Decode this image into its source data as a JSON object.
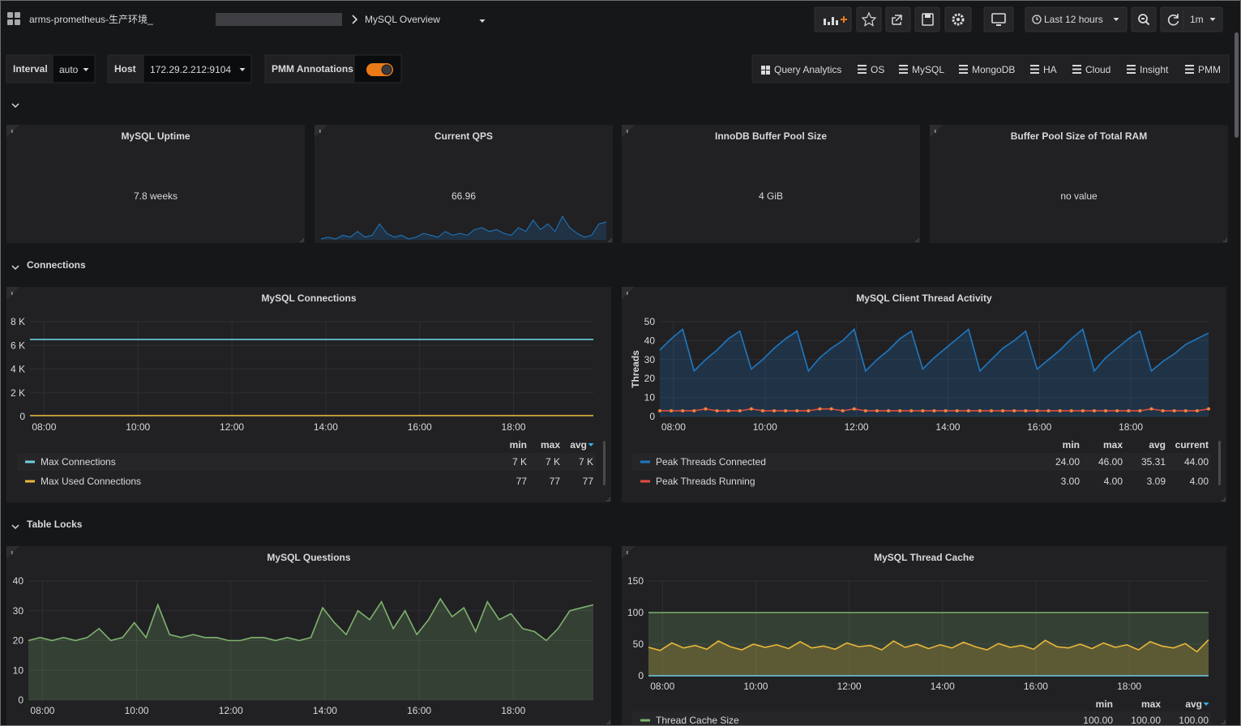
{
  "header": {
    "breadcrumb": "arms-prometheus-生产环境_",
    "title": "MySQL Overview",
    "time_range": "Last 12 hours",
    "refresh": "1m"
  },
  "variables": [
    {
      "label": "Interval",
      "value": "auto"
    },
    {
      "label": "Host",
      "value": "172.29.2.212:9104"
    },
    {
      "label": "PMM Annotations",
      "enabled": true
    }
  ],
  "links": [
    "Query Analytics",
    "OS",
    "MySQL",
    "MongoDB",
    "HA",
    "Cloud",
    "Insight",
    "PMM"
  ],
  "stats": [
    {
      "title": "MySQL Uptime",
      "value": "7.8 weeks",
      "color": "#3cab3c"
    },
    {
      "title": "Current QPS",
      "value": "66.96",
      "sparkline": {
        "color": "#1f78c1",
        "values": [
          62,
          63,
          62,
          64,
          63,
          66,
          63,
          64,
          70,
          65,
          63,
          64,
          62,
          63,
          65,
          64,
          63,
          66,
          64,
          65,
          64,
          67,
          68,
          66,
          67,
          65,
          64,
          68,
          66,
          72,
          67,
          70,
          66,
          74,
          68,
          65,
          63,
          64,
          70,
          71
        ]
      }
    },
    {
      "title": "InnoDB Buffer Pool Size",
      "value": "4 GiB"
    },
    {
      "title": "Buffer Pool Size of Total RAM",
      "value": "no value"
    }
  ],
  "rows": [
    "Connections",
    "Table Locks"
  ],
  "chart_data": [
    {
      "type": "line",
      "title": "MySQL Connections",
      "grid": true,
      "x": [
        7.7,
        8.2,
        8.7,
        9.2,
        9.7,
        10.2,
        10.7,
        11.2,
        11.7,
        12.2,
        12.7,
        13.2,
        13.7,
        14.2,
        14.7,
        15.2,
        15.7,
        16.2,
        16.7,
        17.2,
        17.7,
        18.2,
        18.7,
        19.2,
        19.7
      ],
      "xlim": [
        7.7,
        19.7
      ],
      "xticks": [
        {
          "value": 8,
          "label": "08:00"
        },
        {
          "value": 10,
          "label": "10:00"
        },
        {
          "value": 12,
          "label": "12:00"
        },
        {
          "value": 14,
          "label": "14:00"
        },
        {
          "value": 16,
          "label": "16:00"
        },
        {
          "value": 18,
          "label": "18:00"
        }
      ],
      "ylim": [
        0,
        8000
      ],
      "yticks": [
        0,
        {
          "value": 2000,
          "label": "2 K"
        },
        {
          "value": 4000,
          "label": "4 K"
        },
        {
          "value": 6000,
          "label": "6 K"
        },
        {
          "value": 8000,
          "label": "8 K"
        }
      ],
      "legend_columns": [
        "min",
        "max",
        "avg"
      ],
      "legend_sort": "avg",
      "series": [
        {
          "name": "Max Connections",
          "color": "#6ed0e0",
          "values": [
            6500,
            6500,
            6500,
            6500,
            6500,
            6500,
            6500,
            6500,
            6500,
            6500,
            6500,
            6500,
            6500,
            6500,
            6500,
            6500,
            6500,
            6500,
            6500,
            6500,
            6500,
            6500,
            6500,
            6500,
            6500
          ],
          "legend": [
            "7 K",
            "7 K",
            "7 K"
          ]
        },
        {
          "name": "Max Used Connections",
          "color": "#eab839",
          "values": [
            77,
            77,
            77,
            77,
            77,
            77,
            77,
            77,
            77,
            77,
            77,
            77,
            77,
            77,
            77,
            77,
            77,
            77,
            77,
            77,
            77,
            77,
            77,
            77,
            77
          ],
          "legend": [
            "77",
            "77",
            "77"
          ]
        }
      ]
    },
    {
      "type": "line",
      "title": "MySQL Client Thread Activity",
      "grid": true,
      "ylabel": "Threads",
      "x": [
        7.7,
        7.95,
        8.2,
        8.45,
        8.7,
        8.95,
        9.2,
        9.45,
        9.7,
        9.95,
        10.2,
        10.45,
        10.7,
        10.95,
        11.2,
        11.45,
        11.7,
        11.95,
        12.2,
        12.45,
        12.7,
        12.95,
        13.2,
        13.45,
        13.7,
        13.95,
        14.2,
        14.45,
        14.7,
        14.95,
        15.2,
        15.45,
        15.7,
        15.95,
        16.2,
        16.45,
        16.7,
        16.95,
        17.2,
        17.45,
        17.7,
        17.95,
        18.2,
        18.45,
        18.7,
        18.95,
        19.2,
        19.45,
        19.7
      ],
      "xlim": [
        7.7,
        19.7
      ],
      "xticks": [
        {
          "value": 8,
          "label": "08:00"
        },
        {
          "value": 10,
          "label": "10:00"
        },
        {
          "value": 12,
          "label": "12:00"
        },
        {
          "value": 14,
          "label": "14:00"
        },
        {
          "value": 16,
          "label": "16:00"
        },
        {
          "value": 18,
          "label": "18:00"
        }
      ],
      "ylim": [
        0,
        50
      ],
      "yticks": [
        0,
        10,
        20,
        30,
        40,
        50
      ],
      "legend_columns": [
        "min",
        "max",
        "avg",
        "current"
      ],
      "series": [
        {
          "name": "Peak Threads Connected",
          "color": "#1f78c1",
          "fill": true,
          "values": [
            35,
            41,
            46,
            24,
            30,
            35,
            41,
            45,
            25,
            30,
            36,
            41,
            45,
            24,
            31,
            36,
            40,
            46,
            24,
            30,
            35,
            41,
            45,
            25,
            31,
            36,
            41,
            46,
            24,
            30,
            36,
            40,
            45,
            25,
            30,
            35,
            41,
            46,
            24,
            31,
            36,
            41,
            45,
            24,
            29,
            33,
            38,
            41,
            44
          ],
          "legend": [
            "24.00",
            "46.00",
            "35.31",
            "44.00"
          ]
        },
        {
          "name": "Peak Threads Running",
          "color": "#e24d42",
          "points": true,
          "values": [
            3,
            3,
            3,
            3,
            4,
            3,
            3,
            3,
            4,
            3,
            3,
            3,
            3,
            3,
            4,
            4,
            3,
            4,
            3,
            3,
            3,
            3,
            3,
            3,
            3,
            3,
            3,
            3,
            3,
            3,
            3,
            3,
            3,
            3,
            3,
            3,
            3,
            3,
            3,
            3,
            3,
            3,
            3,
            4,
            3,
            3,
            3,
            3,
            4
          ],
          "legend": [
            "3.00",
            "4.00",
            "3.09",
            "4.00"
          ]
        }
      ]
    },
    {
      "type": "line",
      "title": "MySQL Questions",
      "grid": true,
      "x": [
        7.7,
        7.95,
        8.2,
        8.45,
        8.7,
        8.95,
        9.2,
        9.45,
        9.7,
        9.95,
        10.2,
        10.45,
        10.7,
        10.95,
        11.2,
        11.45,
        11.7,
        11.95,
        12.2,
        12.45,
        12.7,
        12.95,
        13.2,
        13.45,
        13.7,
        13.95,
        14.2,
        14.45,
        14.7,
        14.95,
        15.2,
        15.45,
        15.7,
        15.95,
        16.2,
        16.45,
        16.7,
        16.95,
        17.2,
        17.45,
        17.7,
        17.95,
        18.2,
        18.45,
        18.7,
        18.95,
        19.2,
        19.45,
        19.7
      ],
      "xlim": [
        7.7,
        19.7
      ],
      "xticks": [
        {
          "value": 8,
          "label": "08:00"
        },
        {
          "value": 10,
          "label": "10:00"
        },
        {
          "value": 12,
          "label": "12:00"
        },
        {
          "value": 14,
          "label": "14:00"
        },
        {
          "value": 16,
          "label": "16:00"
        },
        {
          "value": 18,
          "label": "18:00"
        }
      ],
      "ylim": [
        0,
        40
      ],
      "yticks": [
        0,
        10,
        20,
        30,
        40
      ],
      "series": [
        {
          "color": "#7eb26d",
          "fill": true,
          "values": [
            20,
            21,
            20,
            21,
            20,
            21,
            24,
            20,
            21,
            26,
            21,
            32,
            22,
            21,
            22,
            21,
            21,
            20,
            20,
            21,
            21,
            20,
            21,
            20,
            21,
            31,
            26,
            22,
            30,
            27,
            33,
            24,
            30,
            22,
            27,
            34,
            28,
            31,
            23,
            33,
            27,
            29,
            24,
            23,
            20,
            24,
            30,
            31,
            32
          ]
        }
      ]
    },
    {
      "type": "line",
      "title": "MySQL Thread Cache",
      "grid": true,
      "x": [
        7.7,
        7.95,
        8.2,
        8.45,
        8.7,
        8.95,
        9.2,
        9.45,
        9.7,
        9.95,
        10.2,
        10.45,
        10.7,
        10.95,
        11.2,
        11.45,
        11.7,
        11.95,
        12.2,
        12.45,
        12.7,
        12.95,
        13.2,
        13.45,
        13.7,
        13.95,
        14.2,
        14.45,
        14.7,
        14.95,
        15.2,
        15.45,
        15.7,
        15.95,
        16.2,
        16.45,
        16.7,
        16.95,
        17.2,
        17.45,
        17.7,
        17.95,
        18.2,
        18.45,
        18.7,
        18.95,
        19.2,
        19.45,
        19.7
      ],
      "xlim": [
        7.7,
        19.7
      ],
      "xticks": [
        {
          "value": 8,
          "label": "08:00"
        },
        {
          "value": 10,
          "label": "10:00"
        },
        {
          "value": 12,
          "label": "12:00"
        },
        {
          "value": 14,
          "label": "14:00"
        },
        {
          "value": 16,
          "label": "16:00"
        },
        {
          "value": 18,
          "label": "18:00"
        }
      ],
      "ylim": [
        0,
        150
      ],
      "yticks": [
        0,
        50,
        100,
        150
      ],
      "legend_columns": [
        "min",
        "max",
        "avg"
      ],
      "legend_sort": "avg",
      "series": [
        {
          "name": "Thread Cache Size",
          "color": "#7eb26d",
          "fill": true,
          "values": [
            100,
            100,
            100,
            100,
            100,
            100,
            100,
            100,
            100,
            100,
            100,
            100,
            100,
            100,
            100,
            100,
            100,
            100,
            100,
            100,
            100,
            100,
            100,
            100,
            100,
            100,
            100,
            100,
            100,
            100,
            100,
            100,
            100,
            100,
            100,
            100,
            100,
            100,
            100,
            100,
            100,
            100,
            100,
            100,
            100,
            100,
            100,
            100,
            100
          ],
          "legend": [
            "100.00",
            "100.00",
            "100.00"
          ]
        },
        {
          "color": "#eab839",
          "fill": true,
          "values": [
            45,
            40,
            52,
            44,
            48,
            42,
            55,
            46,
            41,
            50,
            45,
            49,
            43,
            54,
            44,
            47,
            42,
            52,
            46,
            48,
            41,
            55,
            45,
            50,
            43,
            49,
            44,
            53,
            46,
            41,
            51,
            45,
            48,
            42,
            56,
            46,
            44,
            50,
            43,
            52,
            45,
            49,
            41,
            54,
            47,
            44,
            51,
            38,
            57
          ]
        },
        {
          "color": "#6ed0e0",
          "values": [
            0,
            0,
            0,
            0,
            0,
            0,
            0,
            0,
            0,
            0,
            0,
            0,
            0,
            0,
            0,
            0,
            0,
            0,
            0,
            0,
            0,
            0,
            0,
            0,
            0,
            0,
            0,
            0,
            0,
            0,
            0,
            0,
            0,
            0,
            0,
            0,
            0,
            0,
            0,
            0,
            0,
            0,
            0,
            0,
            0,
            0,
            0,
            0,
            0
          ]
        }
      ]
    }
  ]
}
